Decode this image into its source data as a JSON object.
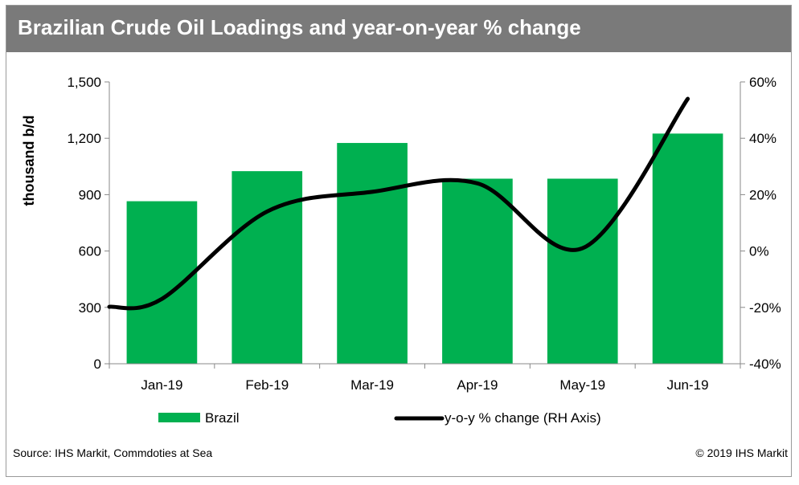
{
  "header": {
    "title": "Brazilian Crude Oil Loadings and year-on-year % change"
  },
  "footer": {
    "source": "Source: IHS Markit, Commdoties at Sea",
    "copyright": "© 2019 IHS Markit"
  },
  "colors": {
    "bar": "#00b050",
    "line": "#000000",
    "title_bg": "#7a7a7a"
  },
  "chart_data": {
    "type": "bar",
    "title": "Brazilian Crude Oil Loadings and year-on-year % change",
    "categories": [
      "Jan-19",
      "Feb-19",
      "Mar-19",
      "Apr-19",
      "May-19",
      "Jun-19"
    ],
    "series": [
      {
        "name": "Brazil",
        "type": "bar",
        "axis": "left",
        "values": [
          865,
          1025,
          1175,
          985,
          985,
          1225
        ]
      },
      {
        "name": "y-o-y % change (RH Axis)",
        "type": "line",
        "axis": "right",
        "values": [
          -17,
          14,
          21,
          24,
          1,
          54
        ]
      }
    ],
    "ylabel": "thousand b/d",
    "ylim": [
      0,
      1500
    ],
    "yticks": [
      "0",
      "300",
      "600",
      "900",
      "1,200",
      "1,500"
    ],
    "yticks_values": [
      0,
      300,
      600,
      900,
      1200,
      1500
    ],
    "y2lim": [
      -40,
      60
    ],
    "y2ticks": [
      "-40%",
      "-20%",
      "0%",
      "20%",
      "40%",
      "60%"
    ],
    "y2ticks_values": [
      -40,
      -20,
      0,
      20,
      40,
      60
    ],
    "grid": false,
    "legend": "bottom"
  }
}
